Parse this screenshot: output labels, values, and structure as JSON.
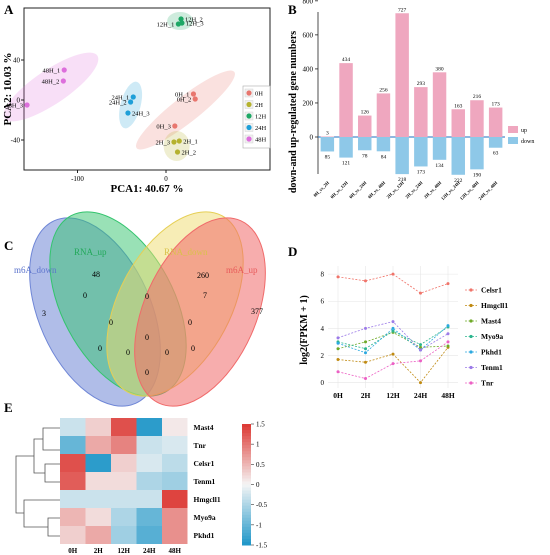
{
  "panels": {
    "A": "A",
    "B": "B",
    "C": "C",
    "D": "D",
    "E": "E"
  },
  "chart_data": [
    {
      "panel": "A",
      "type": "scatter",
      "xlabel": "PCA1: 40.67 %",
      "ylabel": "PCA2: 10.03 %",
      "xticks": [
        "-100",
        "0"
      ],
      "yticks": [
        "40",
        "0",
        "-40"
      ],
      "legend": [
        "0H",
        "2H",
        "12H",
        "24H",
        "48H"
      ],
      "colors": {
        "0H": "#e8766e",
        "2H": "#b5b22e",
        "12H": "#1ea865",
        "24H": "#1e9fd8",
        "48H": "#dd6fdc"
      },
      "points": [
        {
          "label": "0H_1",
          "group": "0H",
          "x": 31,
          "y": 6
        },
        {
          "label": "0H_2",
          "group": "0H",
          "x": 33,
          "y": 1
        },
        {
          "label": "0H_3",
          "group": "0H",
          "x": 10,
          "y": -26
        },
        {
          "label": "2H_1",
          "group": "2H",
          "x": 15,
          "y": -41
        },
        {
          "label": "2H_2",
          "group": "2H",
          "x": 13,
          "y": -52
        },
        {
          "label": "2H_3",
          "group": "2H",
          "x": 9,
          "y": -42
        },
        {
          "label": "12H_1",
          "group": "12H",
          "x": 14,
          "y": 76
        },
        {
          "label": "12H_2",
          "group": "12H",
          "x": 17,
          "y": 81
        },
        {
          "label": "12H_3",
          "group": "12H",
          "x": 18,
          "y": 77
        },
        {
          "label": "24H_1",
          "group": "24H",
          "x": -37,
          "y": 3
        },
        {
          "label": "24H_2",
          "group": "24H",
          "x": -40,
          "y": -2
        },
        {
          "label": "24H_3",
          "group": "24H",
          "x": -43,
          "y": -13
        },
        {
          "label": "48H_1",
          "group": "48H",
          "x": -115,
          "y": 30
        },
        {
          "label": "48H_2",
          "group": "48H",
          "x": -116,
          "y": 19
        },
        {
          "label": "48H_3",
          "group": "48H",
          "x": -157,
          "y": -5
        }
      ]
    },
    {
      "panel": "B",
      "type": "bar",
      "ylabel": "down-and up-regulated gene numbers",
      "yticks": [
        "800",
        "600",
        "400",
        "200",
        "0"
      ],
      "ylim": [
        -300,
        800
      ],
      "categories": [
        "0H_vs_2H",
        "0H_vs_12H",
        "0H_vs_24H",
        "0H_vs_48H",
        "2H_vs_12H",
        "2H_vs_24H",
        "2H_vs_48H",
        "12H_vs_24H",
        "12H_vs_48H",
        "24H_vs_48H"
      ],
      "series": [
        {
          "name": "up",
          "color": "#efa7bf",
          "values": [
            3,
            434,
            126,
            256,
            727,
            293,
            380,
            163,
            216,
            173
          ]
        },
        {
          "name": "down",
          "color": "#8ec8e8",
          "values": [
            85,
            121,
            78,
            84,
            218,
            173,
            134,
            222,
            190,
            63
          ]
        }
      ],
      "legend": [
        "up",
        "down"
      ]
    },
    {
      "panel": "C",
      "type": "table",
      "sets": [
        "m6A_down",
        "RNA_up",
        "RNA_down",
        "m6A_up"
      ],
      "colors": {
        "m6A_down": "#6f86d6",
        "RNA_up": "#34c46e",
        "RNA_down": "#f0dc6e",
        "m6A_up": "#f06a6a"
      },
      "counts": [
        "3",
        "48",
        "260",
        "377",
        "0",
        "7",
        "0",
        "0",
        "0",
        "0",
        "0",
        "0",
        "0",
        "0",
        "0"
      ]
    },
    {
      "panel": "D",
      "type": "line",
      "ylabel": "log2(FPKM + 1)",
      "categories": [
        "0H",
        "2H",
        "12H",
        "24H",
        "48H"
      ],
      "yticks": [
        "8",
        "6",
        "4",
        "2",
        "0"
      ],
      "ylim": [
        -0.4,
        8.6
      ],
      "series": [
        {
          "name": "Celsr1",
          "color": "#f0746a",
          "values": [
            7.8,
            7.5,
            8.0,
            6.6,
            7.3
          ]
        },
        {
          "name": "Hmgcll1",
          "color": "#c08a12",
          "values": [
            1.7,
            1.5,
            2.1,
            0.0,
            2.6
          ]
        },
        {
          "name": "Mast4",
          "color": "#6faa28",
          "values": [
            2.5,
            3.0,
            3.7,
            2.6,
            2.7
          ]
        },
        {
          "name": "Myo9a",
          "color": "#2bb58e",
          "values": [
            3.0,
            2.5,
            3.8,
            2.8,
            4.1
          ]
        },
        {
          "name": "Pkhd1",
          "color": "#2ca9e0",
          "values": [
            2.9,
            2.2,
            4.0,
            2.4,
            4.2
          ]
        },
        {
          "name": "Tenm1",
          "color": "#9c7be8",
          "values": [
            3.3,
            4.0,
            4.5,
            2.4,
            3.6
          ]
        },
        {
          "name": "Tnr",
          "color": "#ec60c4",
          "values": [
            0.8,
            0.3,
            1.4,
            1.6,
            3.0
          ]
        }
      ]
    },
    {
      "panel": "E",
      "type": "heatmap",
      "rows": [
        "Mast4",
        "Tnr",
        "Celsr1",
        "Tenm1",
        "Hmgcll1",
        "Myo9a",
        "Pkhd1"
      ],
      "cols": [
        "0H",
        "2H",
        "12H",
        "24H",
        "48H"
      ],
      "colorbar_ticks": [
        "1.5",
        "1",
        "0.5",
        "0",
        "-0.5",
        "-1",
        "-1.5"
      ],
      "values": [
        [
          -0.3,
          0.3,
          1.3,
          -1.4,
          0.1
        ],
        [
          -1.0,
          0.6,
          0.9,
          -0.3,
          -0.2
        ],
        [
          1.3,
          -1.4,
          0.3,
          -0.2,
          -0.4
        ],
        [
          1.2,
          0.2,
          0.2,
          -0.5,
          -0.6
        ],
        [
          -0.3,
          -0.3,
          -0.3,
          -0.3,
          1.4
        ],
        [
          0.5,
          0.2,
          -0.5,
          -1.0,
          0.8
        ],
        [
          0.3,
          0.6,
          -0.6,
          -1.1,
          0.8
        ]
      ]
    }
  ]
}
